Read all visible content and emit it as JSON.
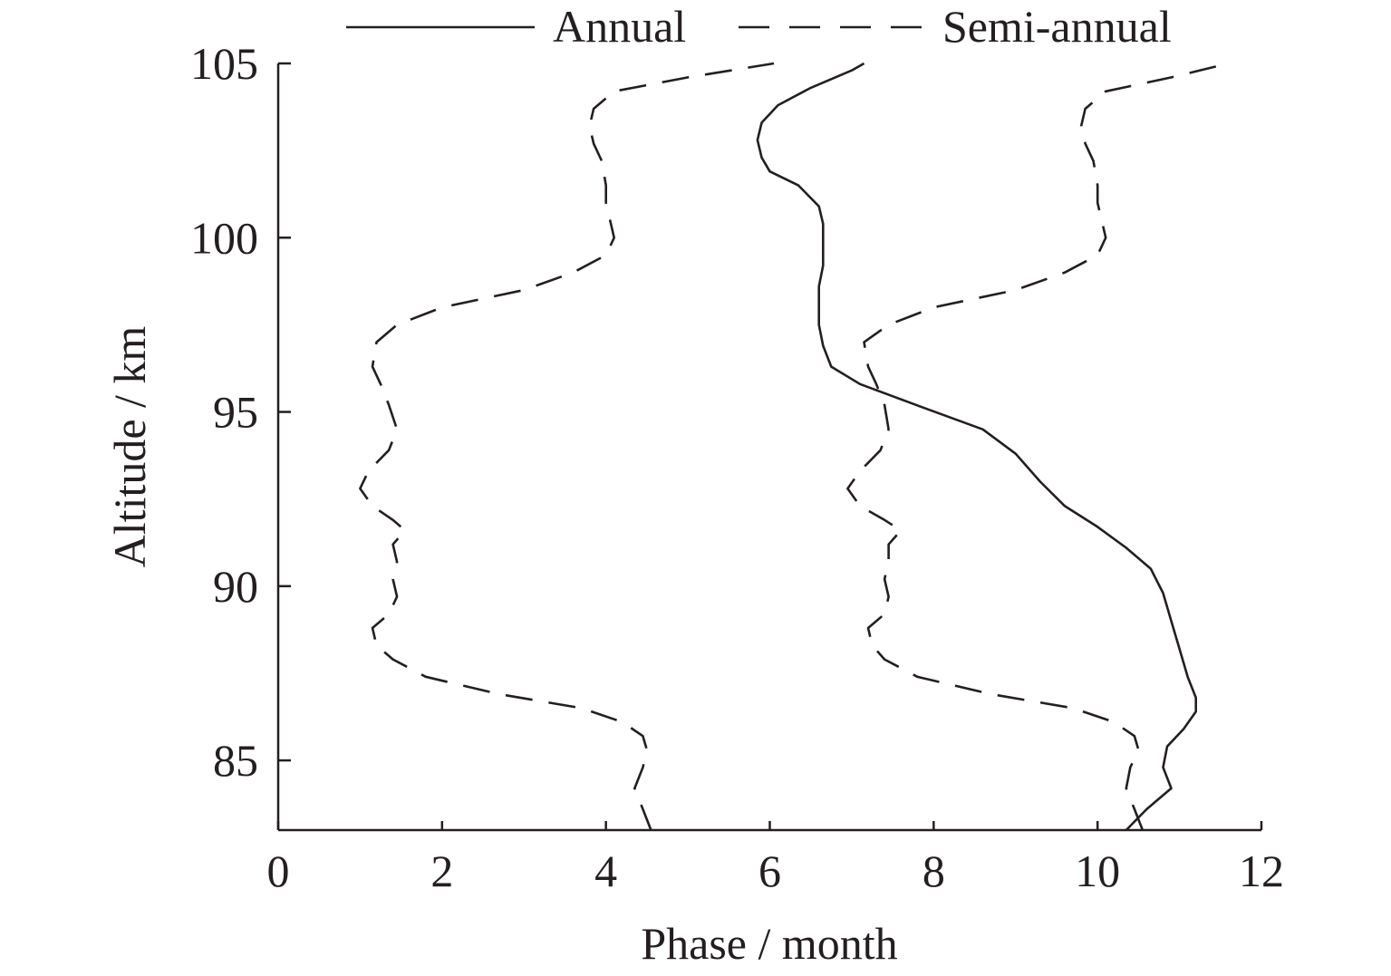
{
  "chart_data": {
    "type": "line",
    "title": "",
    "xlabel": "Phase / month",
    "ylabel": "Altitude / km",
    "xlim": [
      0,
      12
    ],
    "ylim": [
      83,
      105
    ],
    "xticks": [
      0,
      2,
      4,
      6,
      8,
      10,
      12
    ],
    "yticks": [
      85,
      90,
      95,
      100,
      105
    ],
    "xtick_labels": [
      "0",
      "2",
      "4",
      "6",
      "8",
      "10",
      "12"
    ],
    "ytick_labels": [
      "85",
      "90",
      "95",
      "100",
      "105"
    ],
    "grid": false,
    "legend_position": "top",
    "colors": {
      "line": "#231f20",
      "axis": "#231f20",
      "background": "#ffffff"
    },
    "legend": [
      {
        "label": "Annual",
        "style": "solid"
      },
      {
        "label": "Semi-annual",
        "style": "dashed"
      }
    ],
    "series": [
      {
        "name": "Annual",
        "style": "solid",
        "points": [
          [
            10.35,
            83.0
          ],
          [
            10.6,
            83.6
          ],
          [
            10.9,
            84.2
          ],
          [
            10.8,
            84.8
          ],
          [
            10.85,
            85.4
          ],
          [
            11.05,
            85.9
          ],
          [
            11.2,
            86.4
          ],
          [
            11.2,
            86.8
          ],
          [
            11.1,
            87.4
          ],
          [
            11.0,
            88.2
          ],
          [
            10.9,
            89.0
          ],
          [
            10.8,
            89.8
          ],
          [
            10.65,
            90.5
          ],
          [
            10.35,
            91.1
          ],
          [
            10.0,
            91.7
          ],
          [
            9.6,
            92.3
          ],
          [
            9.3,
            93.0
          ],
          [
            9.0,
            93.8
          ],
          [
            8.6,
            94.5
          ],
          [
            7.9,
            95.1
          ],
          [
            7.1,
            95.8
          ],
          [
            6.75,
            96.3
          ],
          [
            6.65,
            96.9
          ],
          [
            6.6,
            97.5
          ],
          [
            6.6,
            98.0
          ],
          [
            6.6,
            98.6
          ],
          [
            6.65,
            99.2
          ],
          [
            6.65,
            99.8
          ],
          [
            6.65,
            100.4
          ],
          [
            6.6,
            100.9
          ],
          [
            6.35,
            101.5
          ],
          [
            6.0,
            101.9
          ],
          [
            5.9,
            102.3
          ],
          [
            5.85,
            102.8
          ],
          [
            5.9,
            103.3
          ],
          [
            6.1,
            103.8
          ],
          [
            6.5,
            104.3
          ],
          [
            7.0,
            104.8
          ],
          [
            7.15,
            105.0
          ]
        ]
      },
      {
        "name": "Semi-annual",
        "style": "dashed",
        "points": [
          [
            4.55,
            83.0
          ],
          [
            4.45,
            83.6
          ],
          [
            4.35,
            84.2
          ],
          [
            4.45,
            84.8
          ],
          [
            4.5,
            85.3
          ],
          [
            4.45,
            85.7
          ],
          [
            4.2,
            86.1
          ],
          [
            3.7,
            86.5
          ],
          [
            2.7,
            86.9
          ],
          [
            1.8,
            87.4
          ],
          [
            1.4,
            87.9
          ],
          [
            1.2,
            88.3
          ],
          [
            1.15,
            88.8
          ],
          [
            1.35,
            89.2
          ],
          [
            1.45,
            89.7
          ],
          [
            1.4,
            90.2
          ],
          [
            1.45,
            90.7
          ],
          [
            1.4,
            91.2
          ],
          [
            1.55,
            91.6
          ],
          [
            1.4,
            91.9
          ],
          [
            1.15,
            92.3
          ],
          [
            1.0,
            92.8
          ],
          [
            1.1,
            93.3
          ],
          [
            1.35,
            93.9
          ],
          [
            1.45,
            94.5
          ],
          [
            1.35,
            95.2
          ],
          [
            1.25,
            95.8
          ],
          [
            1.15,
            96.3
          ],
          [
            1.2,
            97.0
          ],
          [
            1.45,
            97.5
          ],
          [
            2.0,
            98.0
          ],
          [
            3.0,
            98.5
          ],
          [
            3.6,
            99.0
          ],
          [
            4.0,
            99.5
          ],
          [
            4.1,
            100.0
          ],
          [
            4.05,
            100.5
          ],
          [
            4.0,
            101.0
          ],
          [
            4.0,
            101.5
          ],
          [
            3.95,
            102.2
          ],
          [
            3.85,
            102.7
          ],
          [
            3.8,
            103.2
          ],
          [
            3.85,
            103.7
          ],
          [
            4.1,
            104.2
          ],
          [
            5.0,
            104.6
          ],
          [
            6.05,
            105.0
          ]
        ]
      },
      {
        "name": "Semi-annual",
        "style": "dashed",
        "points": [
          [
            10.55,
            83.0
          ],
          [
            10.45,
            83.6
          ],
          [
            10.35,
            84.2
          ],
          [
            10.4,
            84.8
          ],
          [
            10.5,
            85.3
          ],
          [
            10.45,
            85.7
          ],
          [
            10.2,
            86.1
          ],
          [
            9.7,
            86.5
          ],
          [
            8.7,
            86.9
          ],
          [
            7.8,
            87.4
          ],
          [
            7.4,
            87.9
          ],
          [
            7.25,
            88.3
          ],
          [
            7.2,
            88.8
          ],
          [
            7.4,
            89.2
          ],
          [
            7.45,
            89.7
          ],
          [
            7.4,
            90.2
          ],
          [
            7.45,
            90.7
          ],
          [
            7.45,
            91.2
          ],
          [
            7.6,
            91.6
          ],
          [
            7.4,
            91.9
          ],
          [
            7.1,
            92.3
          ],
          [
            6.95,
            92.8
          ],
          [
            7.1,
            93.3
          ],
          [
            7.35,
            93.9
          ],
          [
            7.45,
            94.5
          ],
          [
            7.4,
            95.2
          ],
          [
            7.3,
            95.8
          ],
          [
            7.2,
            96.3
          ],
          [
            7.15,
            97.0
          ],
          [
            7.45,
            97.5
          ],
          [
            8.0,
            98.0
          ],
          [
            9.0,
            98.5
          ],
          [
            9.6,
            99.0
          ],
          [
            10.0,
            99.5
          ],
          [
            10.1,
            100.0
          ],
          [
            10.05,
            100.5
          ],
          [
            10.0,
            101.0
          ],
          [
            10.0,
            101.5
          ],
          [
            9.95,
            102.2
          ],
          [
            9.85,
            102.7
          ],
          [
            9.8,
            103.2
          ],
          [
            9.85,
            103.7
          ],
          [
            10.1,
            104.2
          ],
          [
            10.9,
            104.6
          ],
          [
            11.6,
            105.0
          ]
        ]
      }
    ]
  }
}
